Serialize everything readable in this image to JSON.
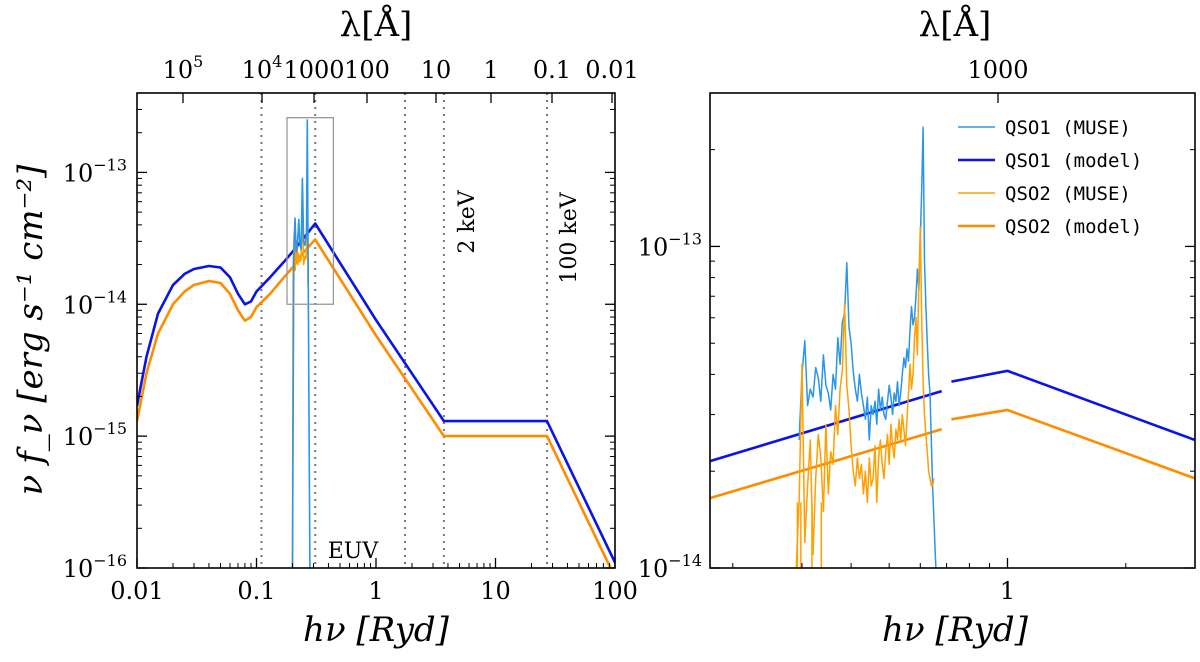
{
  "chart_data": [
    {
      "type": "line",
      "panel": "left",
      "title": "",
      "xlabel": "hν [Ryd]",
      "ylabel": "ν f_ν [erg s⁻¹ cm⁻²]",
      "xscale": "log",
      "yscale": "log",
      "xlim": [
        0.01,
        100
      ],
      "ylim": [
        1e-16,
        4e-13
      ],
      "x_ticks": [
        0.01,
        0.1,
        1,
        10,
        100
      ],
      "x_tick_labels": [
        "0.01",
        "0.1",
        "1",
        "10",
        "100"
      ],
      "y_ticks": [
        1e-16,
        1e-15,
        1e-14,
        1e-13
      ],
      "y_tick_labels": [
        {
          "base": "10",
          "exp": "−16"
        },
        {
          "base": "10",
          "exp": "−15"
        },
        {
          "base": "10",
          "exp": "−14"
        },
        {
          "base": "10",
          "exp": "−13"
        }
      ],
      "top_axis": {
        "label": "λ[Å]",
        "ticks": [
          {
            "x": 0.0091,
            "label": "10",
            "exp": "5"
          },
          {
            "x": 0.091,
            "label": "10",
            "exp": "4"
          },
          {
            "x": 0.91,
            "label": "1000",
            "exp": ""
          },
          {
            "x": 9.1,
            "label": "100",
            "exp": ""
          },
          {
            "x": 91,
            "label": "10",
            "exp": ""
          },
          {
            "x": 911,
            "label": "1",
            "exp": ""
          },
          {
            "x": 9112,
            "label": "0.1",
            "exp": ""
          },
          {
            "x": 91127,
            "label": "0.01",
            "exp": ""
          }
        ]
      },
      "vlines": [
        0.11,
        0.31,
        1.75,
        3.7,
        27
      ],
      "annotations": [
        "2 keV",
        "100 keV",
        "EUV"
      ],
      "zoom_box": {
        "x0": 0.18,
        "x1": 0.44,
        "y0": 1e-14,
        "y1": 2.6e-13
      },
      "series": [
        {
          "name": "QSO1 (model)",
          "color": "#0a14e6",
          "x": [
            0.01,
            0.012,
            0.015,
            0.02,
            0.025,
            0.03,
            0.04,
            0.05,
            0.06,
            0.07,
            0.08,
            0.09,
            0.1,
            0.13,
            0.17,
            0.2,
            0.25,
            0.31,
            1.0,
            3.7,
            27,
            100
          ],
          "y": [
            1.7e-15,
            4e-15,
            8.5e-15,
            1.4e-14,
            1.7e-14,
            1.85e-14,
            1.95e-14,
            1.9e-14,
            1.6e-14,
            1.2e-14,
            1e-14,
            1.05e-14,
            1.25e-14,
            1.6e-14,
            2.1e-14,
            2.5e-14,
            3.2e-14,
            4.1e-14,
            7.6e-15,
            1.3e-15,
            1.3e-15,
            1.1e-16
          ]
        },
        {
          "name": "QSO2 (model)",
          "color": "#ff8c00",
          "x": [
            0.01,
            0.012,
            0.015,
            0.02,
            0.025,
            0.03,
            0.04,
            0.05,
            0.06,
            0.07,
            0.08,
            0.09,
            0.1,
            0.13,
            0.17,
            0.2,
            0.25,
            0.31,
            1.0,
            3.7,
            27,
            100
          ],
          "y": [
            1.3e-15,
            3e-15,
            6e-15,
            1e-14,
            1.25e-14,
            1.4e-14,
            1.5e-14,
            1.45e-14,
            1.2e-14,
            9e-15,
            7.5e-15,
            8e-15,
            9.5e-15,
            1.2e-14,
            1.6e-14,
            1.9e-14,
            2.5e-14,
            3.1e-14,
            5.8e-15,
            1e-15,
            1e-15,
            8.5e-17
          ]
        },
        {
          "name": "QSO1 (MUSE)",
          "color": "#2b95e8",
          "x": [
            0.2,
            0.205,
            0.21,
            0.215,
            0.22,
            0.226,
            0.23,
            0.236,
            0.242,
            0.248,
            0.254,
            0.258,
            0.262,
            0.266,
            0.27,
            0.275,
            0.28
          ],
          "y": [
            1e-16,
            2.5e-14,
            4.5e-14,
            2.5e-14,
            2.8e-14,
            4.4e-14,
            3e-14,
            2.6e-14,
            9e-14,
            3e-14,
            2.8e-14,
            3.1e-14,
            3.4e-14,
            2.5e-13,
            3e-14,
            1.5e-15,
            1e-16
          ]
        },
        {
          "name": "QSO2 (MUSE)",
          "color": "#ffa000",
          "x": [
            0.2,
            0.203,
            0.207,
            0.21,
            0.214,
            0.218,
            0.222,
            0.226,
            0.23,
            0.236,
            0.242,
            0.248,
            0.254,
            0.258,
            0.262,
            0.266,
            0.27
          ],
          "y": [
            1e-16,
            2e-14,
            3.5e-14,
            1.8e-14,
            2.2e-14,
            3e-14,
            2e-14,
            2.4e-14,
            2.1e-14,
            2.2e-14,
            6e-14,
            2e-14,
            2.3e-14,
            2.2e-14,
            2.5e-14,
            1.15e-13,
            1.4e-14
          ]
        }
      ]
    },
    {
      "type": "line",
      "panel": "right",
      "title": "",
      "xlabel": "hν [Ryd]",
      "ylabel": "",
      "xscale": "log",
      "yscale": "log",
      "xlim": [
        0.175,
        3.0
      ],
      "ylim": [
        1e-14,
        3e-13
      ],
      "x_ticks": [
        1
      ],
      "x_tick_labels": [
        "1"
      ],
      "x_minor_ticks": [
        0.2,
        0.3,
        0.4,
        0.5,
        0.6,
        0.7,
        0.8,
        0.9,
        2,
        3
      ],
      "y_ticks": [
        1e-14,
        1e-13
      ],
      "y_tick_labels": [
        {
          "base": "10",
          "exp": "−14"
        },
        {
          "base": "10",
          "exp": "−13"
        }
      ],
      "top_axis": {
        "label": "λ[Å]",
        "ticks": [
          {
            "x": 0.91,
            "label": "1000",
            "exp": ""
          }
        ]
      },
      "legend": {
        "placement": "top-right",
        "entries": [
          "QSO1 (MUSE)",
          "QSO1 (model)",
          "QSO2 (MUSE)",
          "QSO2 (model)"
        ]
      },
      "series": [
        {
          "name": "QSO1 (model)",
          "color": "#0a14e6",
          "x": [
            0.175,
            0.68,
            0.72,
            1.0,
            3.0
          ],
          "y": [
            2.15e-14,
            3.55e-14,
            3.8e-14,
            4.1e-14,
            2.5e-14
          ]
        },
        {
          "name": "QSO2 (model)",
          "color": "#ff8c00",
          "x": [
            0.175,
            0.68,
            0.72,
            1.0,
            3.0
          ],
          "y": [
            1.65e-14,
            2.7e-14,
            2.9e-14,
            3.1e-14,
            1.9e-14
          ]
        },
        {
          "name": "QSO1 (MUSE)",
          "color": "#2b95e8",
          "x": [
            0.295,
            0.3,
            0.305,
            0.31,
            0.315,
            0.32,
            0.325,
            0.33,
            0.335,
            0.34,
            0.345,
            0.35,
            0.355,
            0.36,
            0.365,
            0.37,
            0.375,
            0.38,
            0.385,
            0.39,
            0.395,
            0.4,
            0.405,
            0.41,
            0.415,
            0.42,
            0.425,
            0.43,
            0.435,
            0.44,
            0.445,
            0.45,
            0.455,
            0.46,
            0.465,
            0.47,
            0.475,
            0.48,
            0.485,
            0.49,
            0.495,
            0.5,
            0.505,
            0.51,
            0.515,
            0.52,
            0.525,
            0.53,
            0.535,
            0.54,
            0.545,
            0.55,
            0.555,
            0.56,
            0.565,
            0.57,
            0.575,
            0.58,
            0.585,
            0.59,
            0.595,
            0.6,
            0.605,
            0.61,
            0.615,
            0.62,
            0.625,
            0.63,
            0.635,
            0.64,
            0.645,
            0.65,
            0.655,
            0.66
          ],
          "y": [
            2.5e-14,
            4e-14,
            5.1e-14,
            3.2e-14,
            3.6e-14,
            3.4e-14,
            4.2e-14,
            3.9e-14,
            3.3e-14,
            4.6e-14,
            3.7e-14,
            3.5e-14,
            3.1e-14,
            4e-14,
            3.6e-14,
            5.2e-14,
            4.3e-14,
            5.8e-14,
            6.2e-14,
            8.9e-14,
            5.6e-14,
            5e-14,
            4.1e-14,
            3.6e-14,
            3.3e-14,
            4e-14,
            3.5e-14,
            3.2e-14,
            2.9e-14,
            3.4e-14,
            2.5e-14,
            3.2e-14,
            3e-14,
            3.3e-14,
            2.8e-14,
            3.6e-14,
            3.1e-14,
            3.4e-14,
            3e-14,
            2.9e-14,
            3.3e-14,
            3.7e-14,
            3.4e-14,
            3e-14,
            3.5e-14,
            3.3e-14,
            3.8e-14,
            3.2e-14,
            3.5e-14,
            4e-14,
            4.5e-14,
            4.2e-14,
            4.8e-14,
            4.4e-14,
            5.5e-14,
            6.5e-14,
            5.7e-14,
            6e-14,
            7e-14,
            8.5e-14,
            7.3e-14,
            1.05e-13,
            1.5e-13,
            2.35e-13,
            9e-14,
            6.5e-14,
            5e-14,
            4e-14,
            3.5e-14,
            2.5e-14,
            1.8e-14,
            1.4e-14,
            1.1e-14,
            9e-15
          ],
          "end_x": 0.66
        },
        {
          "name": "QSO2 (MUSE)",
          "color": "#ffa000",
          "x": [
            0.29,
            0.295,
            0.3,
            0.305,
            0.31,
            0.315,
            0.32,
            0.325,
            0.33,
            0.335,
            0.34,
            0.345,
            0.35,
            0.355,
            0.36,
            0.365,
            0.37,
            0.375,
            0.38,
            0.385,
            0.39,
            0.395,
            0.4,
            0.405,
            0.41,
            0.415,
            0.42,
            0.425,
            0.43,
            0.435,
            0.44,
            0.445,
            0.45,
            0.455,
            0.46,
            0.465,
            0.47,
            0.475,
            0.48,
            0.485,
            0.49,
            0.495,
            0.5,
            0.505,
            0.51,
            0.515,
            0.52,
            0.525,
            0.53,
            0.535,
            0.54,
            0.545,
            0.55,
            0.555,
            0.56,
            0.565,
            0.57,
            0.575,
            0.58,
            0.585,
            0.59,
            0.595,
            0.6,
            0.605,
            0.61,
            0.615,
            0.62,
            0.625,
            0.63,
            0.635,
            0.64,
            0.645,
            0.65
          ],
          "y": [
            1e-14,
            1.6e-14,
            4.3e-14,
            1.2e-14,
            1.8e-14,
            2.5e-14,
            1.1e-14,
            1.9e-14,
            2.6e-14,
            2.2e-14,
            1.5e-14,
            2.8e-14,
            1.7e-14,
            2.3e-14,
            2.1e-14,
            3.2e-14,
            2.6e-14,
            3.6e-14,
            4.1e-14,
            6.6e-14,
            3.7e-14,
            3.1e-14,
            2.4e-14,
            2e-14,
            1.8e-14,
            2.2e-14,
            1.9e-14,
            2.1e-14,
            1.7e-14,
            2e-14,
            1.6e-14,
            2.2e-14,
            1.8e-14,
            1.9e-14,
            2.4e-14,
            1.6e-14,
            2.2e-14,
            2.5e-14,
            2.1e-14,
            1.9e-14,
            2.3e-14,
            2.6e-14,
            2.1e-14,
            2.8e-14,
            2.4e-14,
            2.2e-14,
            2.7e-14,
            2.5e-14,
            2.9e-14,
            2.5e-14,
            3e-14,
            2.7e-14,
            2.4e-14,
            2.9e-14,
            3.5e-14,
            4.3e-14,
            3.6e-14,
            4e-14,
            5.2e-14,
            6e-14,
            4.6e-14,
            8e-14,
            1.15e-13,
            6e-14,
            3.8e-14,
            3e-14,
            2.6e-14,
            2.3e-14,
            2e-14,
            1.9e-14,
            1.8e-14,
            1.8e-14,
            1.9e-14
          ]
        }
      ]
    }
  ]
}
